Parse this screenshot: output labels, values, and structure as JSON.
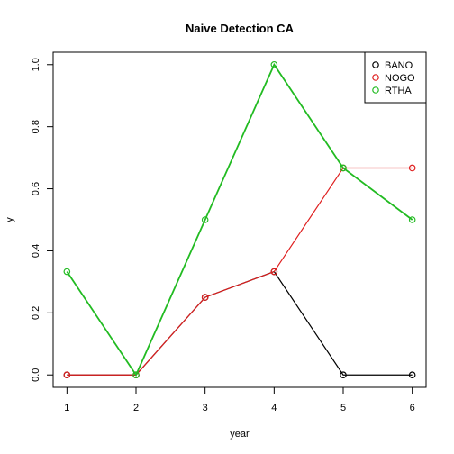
{
  "chart_data": {
    "type": "line",
    "title": "Naive Detection CA",
    "x_label": "year",
    "y_label": "y",
    "x": [
      1,
      2,
      3,
      4,
      5,
      6
    ],
    "series": [
      {
        "name": "BANO",
        "color": "#000000",
        "values": [
          0,
          0,
          0.25,
          0.333,
          0,
          0
        ]
      },
      {
        "name": "NOGO",
        "color": "#df1f1f",
        "values": [
          0,
          0,
          0.25,
          0.333,
          0.667,
          0.667
        ]
      },
      {
        "name": "RTHA",
        "color": "#22bb22",
        "values": [
          0.333,
          0,
          0.5,
          1,
          0.667,
          0.5
        ]
      }
    ],
    "xlim": [
      0.8,
      6.2
    ],
    "xticks": [
      1,
      2,
      3,
      4,
      5,
      6
    ],
    "ylim": [
      -0.04,
      1.04
    ],
    "yticks": [
      {
        "value": 0,
        "label": "0.0"
      },
      0.2,
      0.4,
      0.6,
      0.8,
      {
        "value": 1,
        "label": "1.0"
      }
    ],
    "legend": "top-right"
  }
}
